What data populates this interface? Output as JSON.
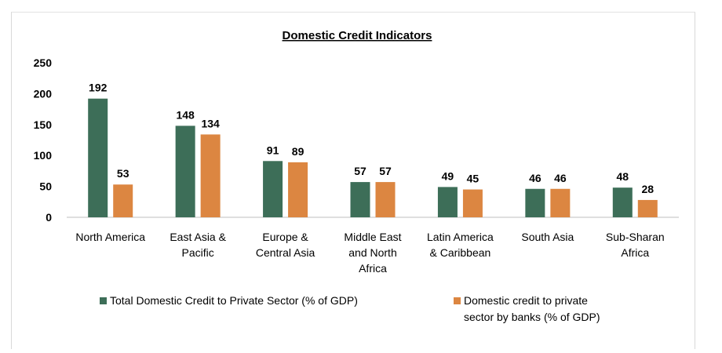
{
  "chart_data": {
    "type": "bar",
    "title": "Domestic Credit Indicators",
    "categories": [
      [
        "North America"
      ],
      [
        "East Asia &",
        "Pacific"
      ],
      [
        "Europe &",
        "Central Asia"
      ],
      [
        "Middle East",
        "and North",
        "Africa"
      ],
      [
        "Latin America",
        "& Caribbean"
      ],
      [
        "South Asia"
      ],
      [
        "Sub-Sharan",
        "Africa"
      ]
    ],
    "series": [
      {
        "name": [
          "Total Domestic Credit to Private Sector (% of GDP)"
        ],
        "color": "#3d6e58",
        "values": [
          192,
          148,
          91,
          57,
          49,
          46,
          48
        ]
      },
      {
        "name": [
          "Domestic credit to private",
          "sector by banks (% of GDP)"
        ],
        "color": "#dc8641",
        "values": [
          53,
          134,
          89,
          57,
          45,
          46,
          28
        ]
      }
    ],
    "ylim": [
      0,
      250
    ],
    "yticks": [
      0,
      50,
      100,
      150,
      200,
      250
    ],
    "grid": false,
    "legend_position": "bottom",
    "xlabel": "",
    "ylabel": ""
  }
}
